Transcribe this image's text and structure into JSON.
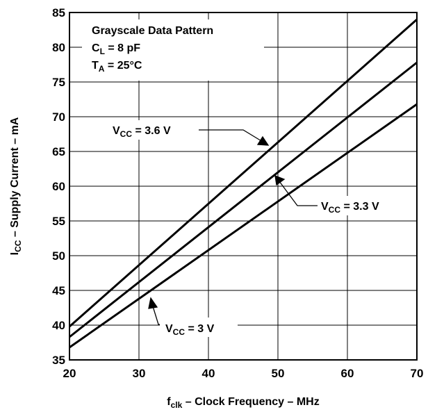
{
  "chart_data": {
    "type": "line",
    "xlabel": {
      "main": "f",
      "sub": "clk",
      "rest": " – Clock Frequency – MHz"
    },
    "ylabel": {
      "main": "I",
      "sub": "CC",
      "rest": " – Supply Current – mA"
    },
    "xlim": [
      20,
      70
    ],
    "ylim": [
      35,
      85
    ],
    "x_ticks": [
      "20",
      "30",
      "40",
      "50",
      "60",
      "70"
    ],
    "y_ticks": [
      "35",
      "40",
      "45",
      "50",
      "55",
      "60",
      "65",
      "70",
      "75",
      "80",
      "85"
    ],
    "grid": true,
    "legend": "none",
    "conditions": [
      {
        "main": "Grayscale Data Pattern",
        "sub": "",
        "rest": ""
      },
      {
        "main": "C",
        "sub": "L",
        "rest": " = 8 pF"
      },
      {
        "main": "T",
        "sub": "A",
        "rest": " = 25°C"
      }
    ],
    "series": [
      {
        "name": "V_CC = 3.6 V",
        "label_main": "V",
        "label_sub": "CC",
        "label_rest": " = 3.6 V",
        "x": [
          20,
          70
        ],
        "y": [
          39.8,
          84.0
        ]
      },
      {
        "name": "V_CC = 3.3 V",
        "label_main": "V",
        "label_sub": "CC",
        "label_rest": " = 3.3 V",
        "x": [
          20,
          70
        ],
        "y": [
          38.3,
          77.8
        ]
      },
      {
        "name": "V_CC = 3 V",
        "label_main": "V",
        "label_sub": "CC",
        "label_rest": " = 3 V",
        "x": [
          20,
          70
        ],
        "y": [
          36.8,
          71.8
        ]
      }
    ]
  }
}
